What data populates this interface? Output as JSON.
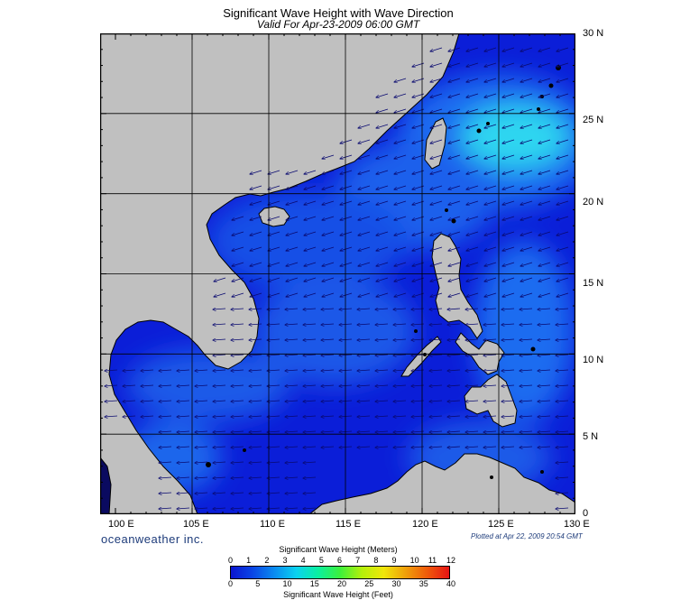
{
  "header": {
    "title": "Significant Wave Height with Wave Direction",
    "subtitle": "Valid For Apr-23-2009 06:00 GMT"
  },
  "map": {
    "latitude_labels": [
      "30 N",
      "25 N",
      "20 N",
      "15 N",
      "10 N",
      "5 N",
      "0"
    ],
    "longitude_labels": [
      "100 E",
      "105 E",
      "110 E",
      "115 E",
      "120 E",
      "125 E",
      "130 E"
    ],
    "extent": {
      "lon_min": 99,
      "lon_max": 130,
      "lat_min": 0,
      "lat_max": 30
    },
    "colors": {
      "land": "#c0c0c0",
      "coast": "#000000",
      "grid": "#000000",
      "arrow": "#0a0a70",
      "sea_low": "#0b1ed8",
      "sea_mid": "#1f6cf0",
      "sea_high": "#2fd6f0"
    }
  },
  "footer": {
    "brand": "oceanweather inc.",
    "plotted": "Plotted at Apr 22, 2009 20:54 GMT"
  },
  "colorbar": {
    "title_meters": "Significant Wave Height (Meters)",
    "title_feet": "Significant Wave Height (Feet)",
    "meters_ticks": [
      "0",
      "1",
      "2",
      "3",
      "4",
      "5",
      "6",
      "7",
      "8",
      "9",
      "10",
      "11",
      "12"
    ],
    "feet_ticks": [
      "0",
      "5",
      "10",
      "15",
      "20",
      "25",
      "30",
      "35",
      "40"
    ],
    "gradient": [
      "#0a14d0",
      "#0a46e6",
      "#0a8cf0",
      "#0ad2f0",
      "#0af0a0",
      "#3cf03c",
      "#b4f00a",
      "#f0e60a",
      "#f0a00a",
      "#f05a0a",
      "#e61414"
    ]
  }
}
